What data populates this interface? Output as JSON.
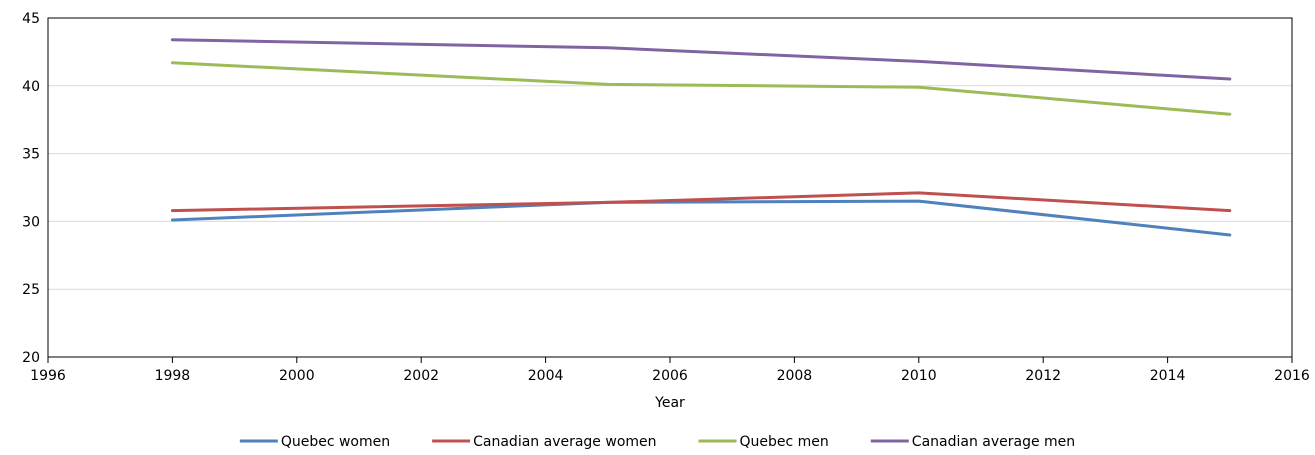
{
  "chart_data": {
    "type": "line",
    "title": "",
    "xlabel": "Year",
    "ylabel": "",
    "xlim": [
      1996,
      2016
    ],
    "ylim": [
      20,
      45
    ],
    "x_ticks": [
      1996,
      1998,
      2000,
      2002,
      2004,
      2006,
      2008,
      2010,
      2012,
      2014,
      2016
    ],
    "y_ticks": [
      20,
      25,
      30,
      35,
      40,
      45
    ],
    "grid": "horizontal",
    "legend_position": "bottom",
    "series": [
      {
        "name": "Quebec women",
        "color": "#4f81bd",
        "x": [
          1998,
          2005,
          2010,
          2015
        ],
        "y": [
          30.1,
          31.4,
          31.5,
          29.0
        ]
      },
      {
        "name": "Canadian average women",
        "color": "#c0504d",
        "x": [
          1998,
          2005,
          2010,
          2015
        ],
        "y": [
          30.8,
          31.4,
          32.1,
          30.8
        ]
      },
      {
        "name": "Quebec men",
        "color": "#9bbb59",
        "x": [
          1998,
          2005,
          2010,
          2015
        ],
        "y": [
          41.7,
          40.1,
          39.9,
          37.9
        ]
      },
      {
        "name": "Canadian average men",
        "color": "#8064a2",
        "x": [
          1998,
          2005,
          2010,
          2015
        ],
        "y": [
          43.4,
          42.8,
          41.8,
          40.5
        ]
      }
    ]
  }
}
